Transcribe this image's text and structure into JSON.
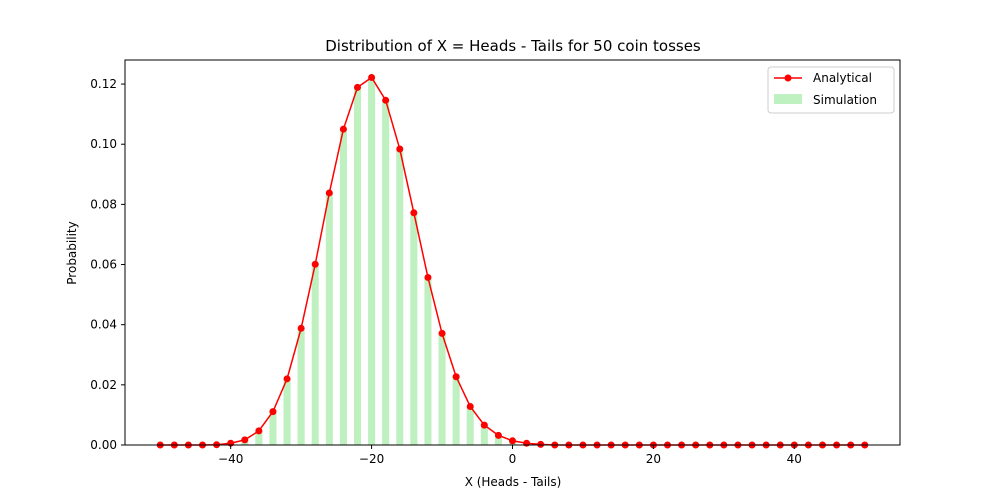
{
  "chart_data": {
    "type": "bar",
    "title": "Distribution of X = Heads - Tails for 50 coin tosses",
    "xlabel": "X (Heads - Tails)",
    "ylabel": "Probability",
    "xlim": [
      -55,
      55
    ],
    "ylim": [
      0,
      0.128
    ],
    "xticks": [
      -40,
      -20,
      0,
      20,
      40
    ],
    "xtick_labels": [
      "−40",
      "−20",
      "0",
      "20",
      "40"
    ],
    "yticks": [
      0,
      0.02,
      0.04,
      0.06,
      0.08,
      0.1,
      0.12
    ],
    "ytick_labels": [
      "0.00",
      "0.02",
      "0.04",
      "0.06",
      "0.08",
      "0.10",
      "0.12"
    ],
    "grid": false,
    "legend_position": "top-right",
    "colors": {
      "analytical": "#ff0000",
      "simulation": "#bff0bf"
    },
    "x": [
      -50,
      -48,
      -46,
      -44,
      -42,
      -40,
      -38,
      -36,
      -34,
      -32,
      -30,
      -28,
      -26,
      -24,
      -22,
      -20,
      -18,
      -16,
      -14,
      -12,
      -10,
      -8,
      -6,
      -4,
      -2,
      0,
      2,
      4,
      6,
      8,
      10,
      12,
      14,
      16,
      18,
      20,
      22,
      24,
      26,
      28,
      30,
      32,
      34,
      36,
      38,
      40,
      42,
      44,
      46,
      48,
      50
    ],
    "series": [
      {
        "name": "Analytical",
        "kind": "line",
        "values": [
          0,
          0,
          0,
          0,
          0.0001,
          0.0006,
          0.0017,
          0.0047,
          0.0111,
          0.022,
          0.0388,
          0.0601,
          0.0838,
          0.105,
          0.1189,
          0.1222,
          0.1146,
          0.0984,
          0.0772,
          0.0557,
          0.0371,
          0.0227,
          0.0128,
          0.0066,
          0.0032,
          0.0014,
          0.0006,
          0.0002,
          0,
          0,
          0,
          0,
          0,
          0,
          0,
          0,
          0,
          0,
          0,
          0,
          0,
          0,
          0,
          0,
          0,
          0,
          0,
          0,
          0,
          0,
          0
        ]
      },
      {
        "name": "Simulation",
        "kind": "bar",
        "values": [
          0,
          0,
          0,
          0,
          0.0001,
          0.0005,
          0.0018,
          0.0046,
          0.0112,
          0.0221,
          0.0387,
          0.06,
          0.084,
          0.1051,
          0.119,
          0.122,
          0.1148,
          0.0982,
          0.0771,
          0.0558,
          0.0372,
          0.0226,
          0.0127,
          0.0067,
          0.0031,
          0.0014,
          0.0005,
          0.0002,
          0,
          0,
          0,
          0,
          0,
          0,
          0,
          0,
          0,
          0,
          0,
          0,
          0,
          0,
          0,
          0,
          0,
          0,
          0,
          0,
          0,
          0,
          0
        ]
      }
    ]
  }
}
